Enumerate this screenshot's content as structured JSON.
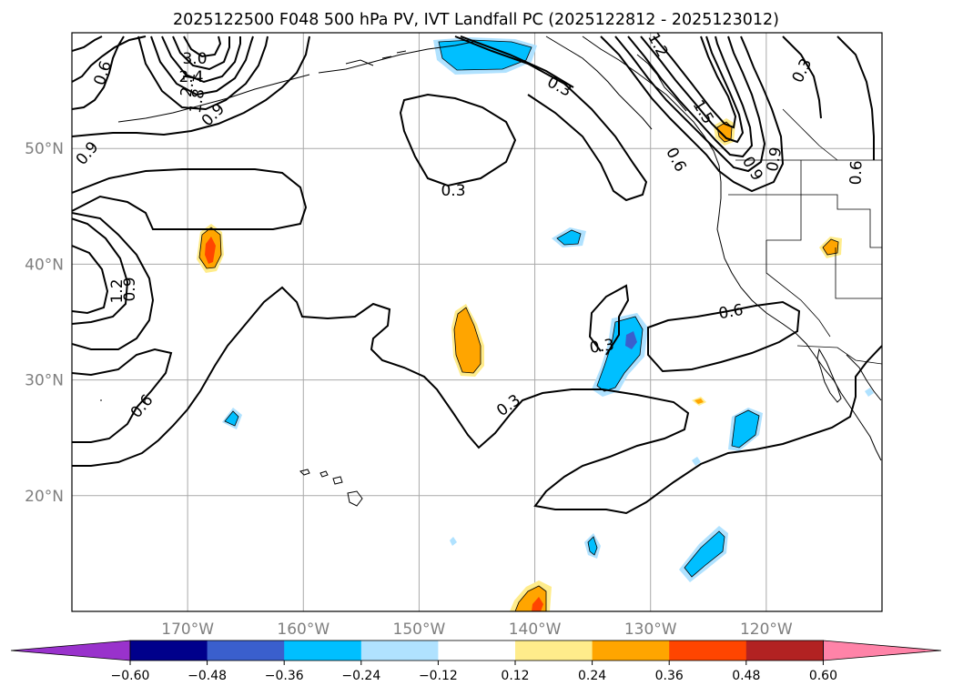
{
  "title": "2025122500 F048 500 hPa PV, IVT Landfall PC (2025122812 - 2025123012)",
  "map": {
    "lat_ticks": [
      {
        "label": "50°N",
        "lat": 50
      },
      {
        "label": "40°N",
        "lat": 40
      },
      {
        "label": "30°N",
        "lat": 30
      },
      {
        "label": "20°N",
        "lat": 20
      }
    ],
    "lon_ticks": [
      {
        "label": "170°W",
        "lon": -170
      },
      {
        "label": "160°W",
        "lon": -160
      },
      {
        "label": "150°W",
        "lon": -150
      },
      {
        "label": "140°W",
        "lon": -140
      },
      {
        "label": "130°W",
        "lon": -130
      },
      {
        "label": "120°W",
        "lon": -120
      }
    ],
    "extent": {
      "lon_min": -180,
      "lon_max": -110,
      "lat_min": 10,
      "lat_max": 60
    },
    "contour_labels": [
      "0.3",
      "0.3",
      "0.3",
      "0.3",
      "0.3",
      "0.6",
      "0.6",
      "0.6",
      "0.6",
      "0.9",
      "0.9",
      "0.9",
      "0.9",
      "1.2",
      "1.5",
      "1.8",
      "2.1",
      "2.4",
      "3.0",
      "0.6",
      "0.9",
      "1.2"
    ],
    "pv_field": "500 hPa PV (black contours)",
    "ivt_pc_field": "IVT Landfall PC (shaded)"
  },
  "colorbar": {
    "ticks": [
      "−0.60",
      "−0.48",
      "−0.36",
      "−0.24",
      "−0.12",
      "0.12",
      "0.24",
      "0.36",
      "0.48",
      "0.60"
    ],
    "colors": [
      "#9932cc",
      "#00008b",
      "#3a5fcd",
      "#00bfff",
      "#b0e2ff",
      "#ffffff",
      "#ffec8b",
      "#ffa500",
      "#ff4500",
      "#b22222",
      "#ff83a8"
    ]
  },
  "chart_data": {
    "type": "contour-map",
    "title": "2025122500 F048 500 hPa PV, IVT Landfall PC (2025122812 - 2025123012)",
    "contour_levels": [
      0.3,
      0.6,
      0.9,
      1.2,
      1.5,
      1.8,
      2.1,
      2.4,
      3.0
    ],
    "shade_levels": [
      -0.6,
      -0.48,
      -0.36,
      -0.24,
      -0.12,
      0.12,
      0.24,
      0.36,
      0.48,
      0.6
    ],
    "xlim": [
      -180,
      -110
    ],
    "ylim": [
      10,
      60
    ]
  }
}
